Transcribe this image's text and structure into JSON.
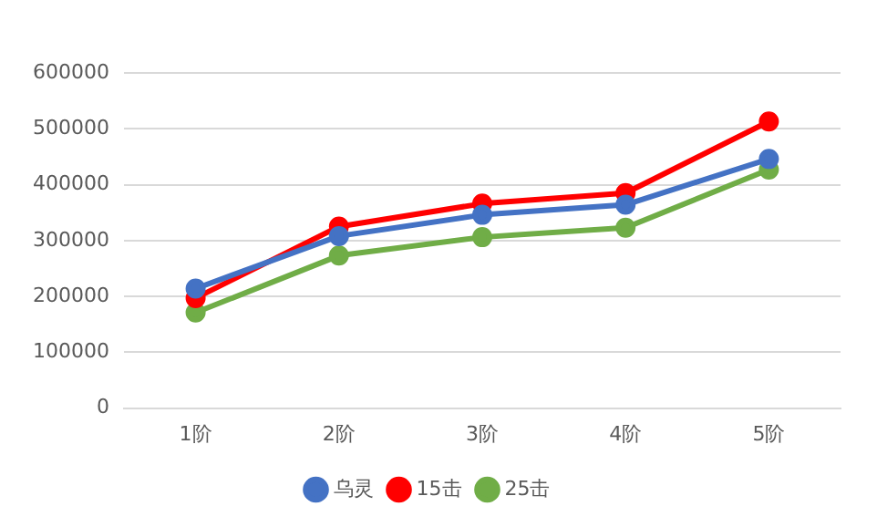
{
  "chart_data": {
    "type": "line",
    "categories": [
      "1阶",
      "2阶",
      "3阶",
      "4阶",
      "5阶"
    ],
    "series": [
      {
        "name": "乌灵",
        "color": "#4472c4",
        "values": [
          214000,
          308000,
          346000,
          364000,
          446000
        ]
      },
      {
        "name": "15击",
        "color": "#ff0000",
        "values": [
          197000,
          325000,
          366000,
          385000,
          513000
        ]
      },
      {
        "name": "25击",
        "color": "#70ad47",
        "values": [
          171000,
          273000,
          306000,
          323000,
          427000
        ]
      }
    ],
    "ylim": [
      0,
      600000
    ],
    "yticks": [
      0,
      100000,
      200000,
      300000,
      400000,
      500000,
      600000
    ],
    "grid": "y",
    "legend": "bottom",
    "marker": "circle",
    "line_style": "solid"
  }
}
